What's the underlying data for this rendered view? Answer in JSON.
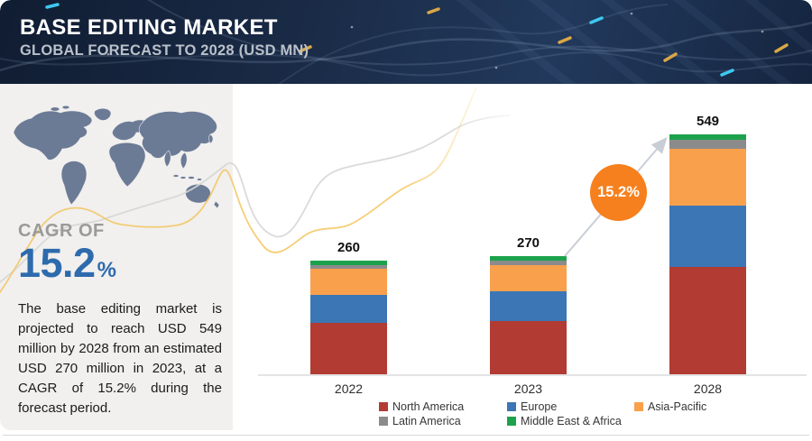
{
  "header": {
    "title": "BASE EDITING MARKET",
    "subtitle": "GLOBAL FORECAST TO 2028 (USD MN)"
  },
  "sidebar": {
    "cagr_label": "CAGR OF",
    "cagr_value": "15.2",
    "cagr_unit": "%",
    "cagr_color": "#2e6bad",
    "description": "The base editing market is projected to reach USD 549 million by 2028 from an estimated USD 270 million in 2023, at a CAGR of 15.2% during the forecast period."
  },
  "chart_data": {
    "type": "bar",
    "stacked": true,
    "title": "Base Editing Market, Global Forecast to 2028 (USD MN)",
    "categories": [
      "2022",
      "2023",
      "2028"
    ],
    "totals": [
      260,
      270,
      549
    ],
    "series": [
      {
        "name": "North America",
        "color": "#b23b33",
        "values": [
          117,
          121,
          245
        ]
      },
      {
        "name": "Europe",
        "color": "#3c76b5",
        "values": [
          64,
          68,
          140
        ]
      },
      {
        "name": "Asia-Pacific",
        "color": "#f9a04d",
        "values": [
          60,
          61,
          130
        ]
      },
      {
        "name": "Latin America",
        "color": "#8b8b8b",
        "values": [
          8,
          10,
          21
        ]
      },
      {
        "name": "Middle East & Africa",
        "color": "#1ca24c",
        "values": [
          11,
          10,
          13
        ]
      }
    ],
    "ylim": [
      0,
      560
    ],
    "grid": false,
    "legend_position": "bottom",
    "annotation": {
      "label": "15.2%",
      "color": "#f6801d"
    }
  }
}
